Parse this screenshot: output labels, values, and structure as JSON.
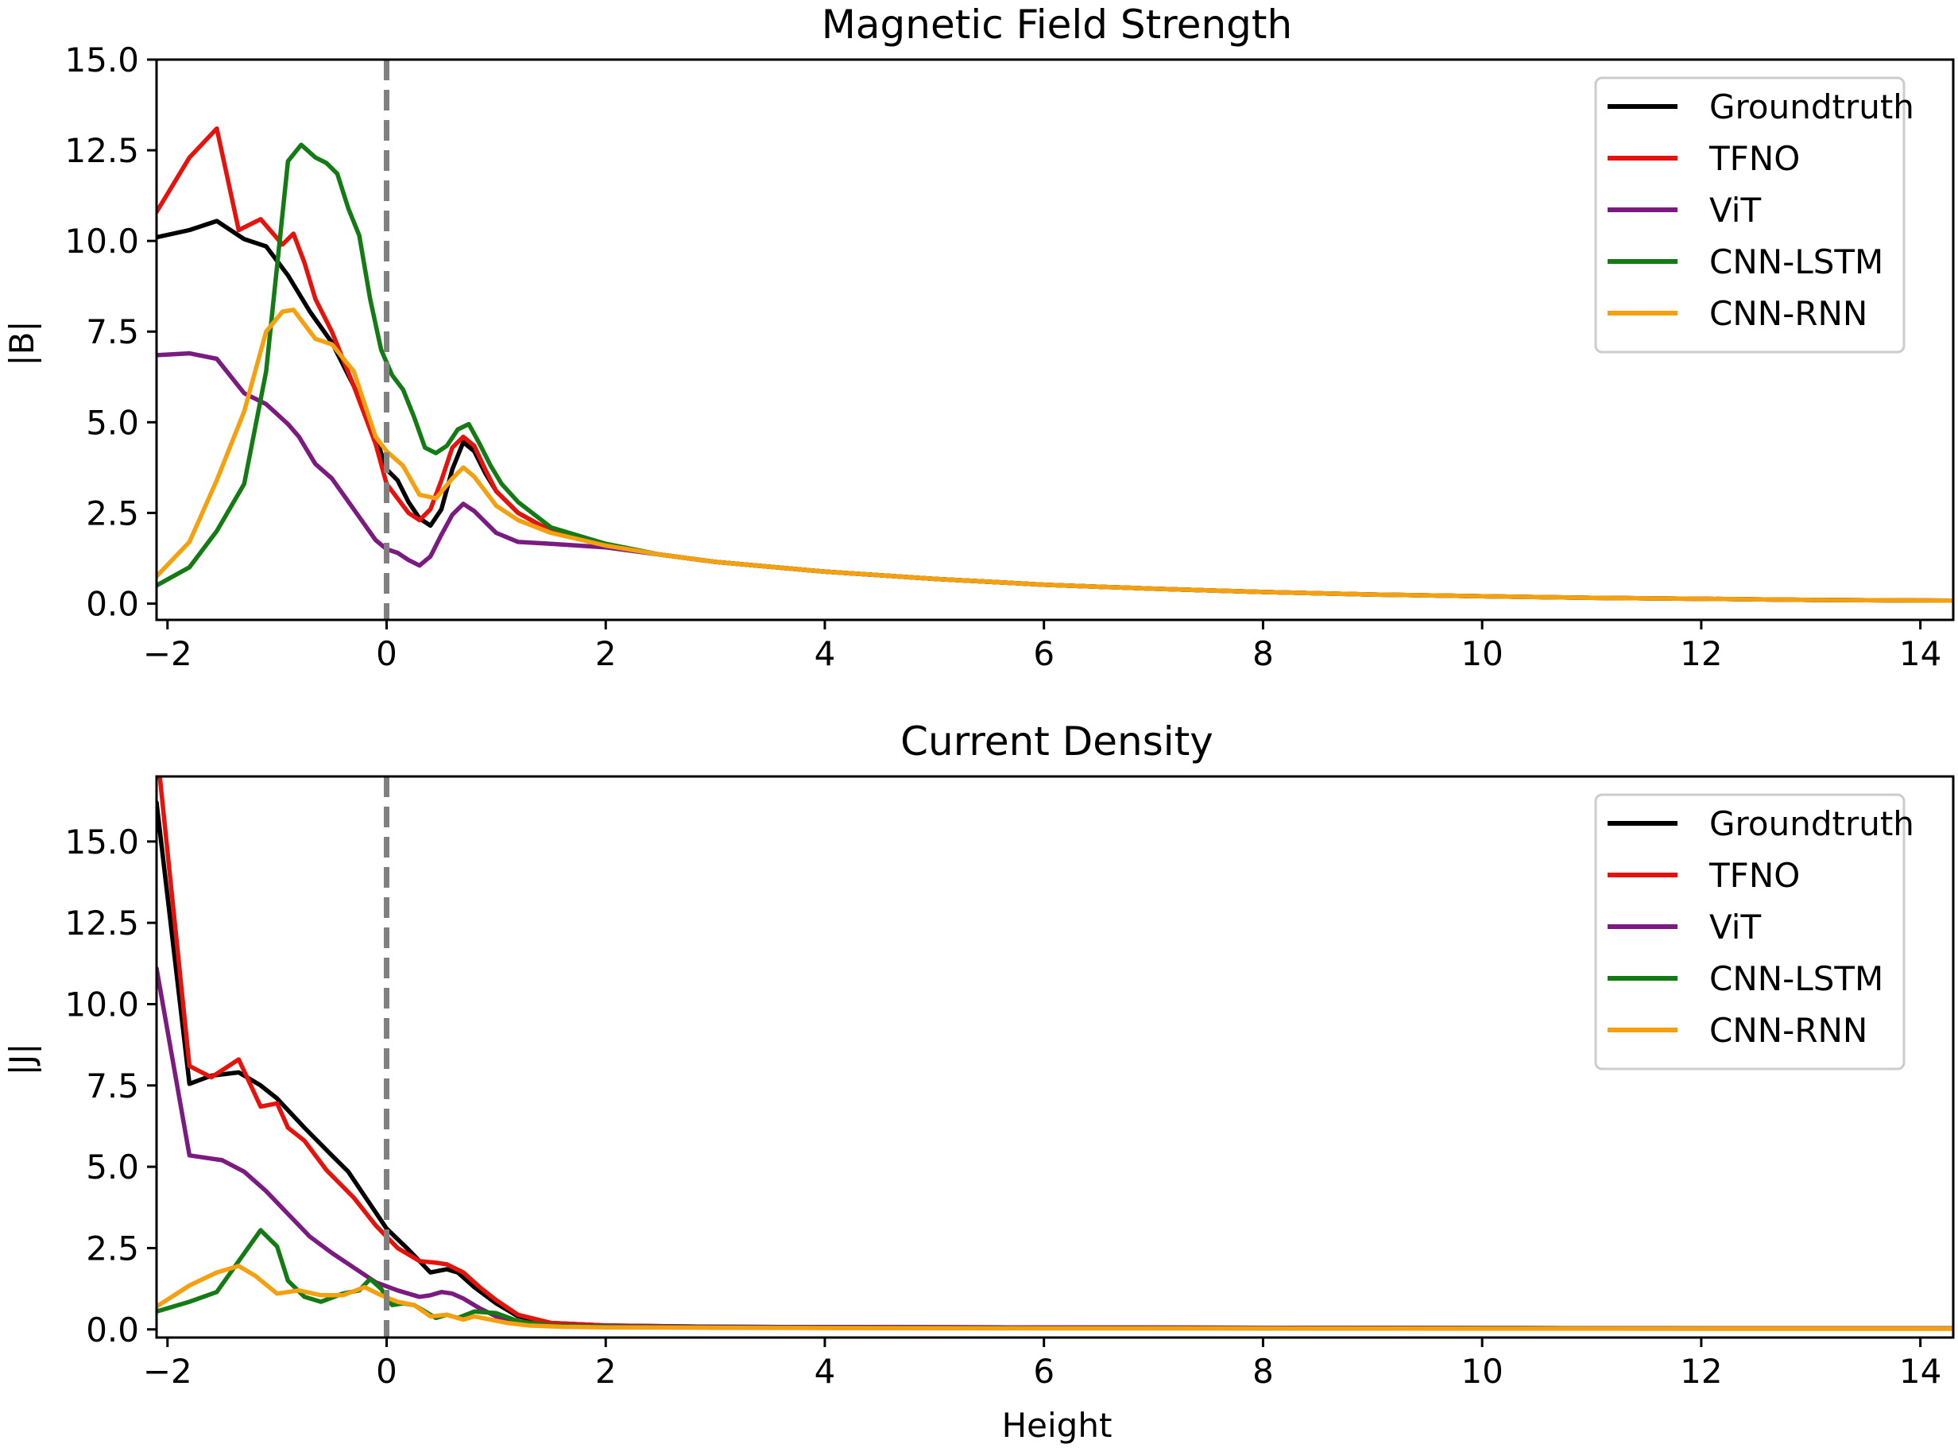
{
  "chart_data": [
    {
      "type": "line",
      "title": "Magnetic Field Strength",
      "xlabel": "",
      "ylabel": "|B|",
      "xlim": [
        -2.1,
        14.3
      ],
      "ylim": [
        -0.45,
        15.0
      ],
      "xticks": [
        -2,
        0,
        2,
        4,
        6,
        8,
        10,
        12,
        14
      ],
      "xtick_labels": [
        "−2",
        "0",
        "2",
        "4",
        "6",
        "8",
        "10",
        "12",
        "14"
      ],
      "yticks": [
        0,
        2.5,
        5,
        7.5,
        10,
        12.5,
        15
      ],
      "ytick_labels": [
        "0.0",
        "2.5",
        "5.0",
        "7.5",
        "10.0",
        "12.5",
        "15.0"
      ],
      "vline": {
        "x": 0,
        "style": "dashed",
        "color": "#808080"
      },
      "legend": {
        "position": "top-right"
      },
      "series": [
        {
          "name": "Groundtruth",
          "color": "#000000",
          "x": [
            -2.1,
            -1.8,
            -1.55,
            -1.3,
            -1.1,
            -0.9,
            -0.7,
            -0.5,
            -0.3,
            -0.1,
            0.0,
            0.1,
            0.2,
            0.3,
            0.4,
            0.5,
            0.6,
            0.7,
            0.8,
            0.9,
            1.0,
            1.2,
            1.5,
            2.0,
            2.5,
            3,
            4,
            5,
            6,
            7,
            8,
            9,
            10,
            11,
            12,
            13,
            14.3
          ],
          "values": [
            10.1,
            10.3,
            10.55,
            10.05,
            9.85,
            9.05,
            8.05,
            7.2,
            6.0,
            4.6,
            3.7,
            3.4,
            2.8,
            2.35,
            2.15,
            2.6,
            3.7,
            4.45,
            4.2,
            3.6,
            3.1,
            2.5,
            2.0,
            1.6,
            1.35,
            1.15,
            0.88,
            0.68,
            0.52,
            0.41,
            0.32,
            0.25,
            0.2,
            0.16,
            0.13,
            0.1,
            0.08
          ]
        },
        {
          "name": "TFNO",
          "color": "#e8120c",
          "x": [
            -2.1,
            -1.8,
            -1.55,
            -1.35,
            -1.15,
            -0.95,
            -0.85,
            -0.75,
            -0.65,
            -0.5,
            -0.3,
            -0.1,
            0.0,
            0.1,
            0.2,
            0.3,
            0.4,
            0.5,
            0.6,
            0.7,
            0.8,
            0.9,
            1.0,
            1.2,
            1.5,
            2.0,
            2.5,
            3,
            4,
            5,
            6,
            7,
            8,
            9,
            10,
            11,
            12,
            13,
            14.3
          ],
          "values": [
            10.8,
            12.3,
            13.1,
            10.3,
            10.6,
            9.9,
            10.2,
            9.4,
            8.4,
            7.5,
            6.0,
            4.4,
            3.3,
            2.9,
            2.5,
            2.3,
            2.6,
            3.4,
            4.3,
            4.6,
            4.35,
            3.7,
            3.1,
            2.5,
            2.0,
            1.6,
            1.35,
            1.15,
            0.88,
            0.68,
            0.52,
            0.41,
            0.32,
            0.25,
            0.2,
            0.16,
            0.13,
            0.1,
            0.08
          ]
        },
        {
          "name": "ViT",
          "color": "#7b1a80",
          "x": [
            -2.1,
            -1.8,
            -1.55,
            -1.3,
            -1.1,
            -0.9,
            -0.8,
            -0.65,
            -0.5,
            -0.3,
            -0.1,
            0.0,
            0.1,
            0.2,
            0.3,
            0.4,
            0.5,
            0.6,
            0.7,
            0.8,
            0.9,
            1.0,
            1.2,
            1.5,
            2.0,
            2.5,
            3,
            4,
            5,
            6,
            7,
            8,
            9,
            10,
            11,
            12,
            13,
            14.3
          ],
          "values": [
            6.85,
            6.9,
            6.75,
            5.8,
            5.5,
            4.95,
            4.6,
            3.85,
            3.45,
            2.6,
            1.75,
            1.5,
            1.4,
            1.2,
            1.05,
            1.3,
            1.9,
            2.45,
            2.75,
            2.55,
            2.25,
            1.95,
            1.7,
            1.65,
            1.55,
            1.35,
            1.15,
            0.88,
            0.68,
            0.52,
            0.41,
            0.32,
            0.25,
            0.2,
            0.16,
            0.13,
            0.1,
            0.08
          ]
        },
        {
          "name": "CNN-LSTM",
          "color": "#147a14",
          "x": [
            -2.1,
            -1.8,
            -1.55,
            -1.3,
            -1.1,
            -0.9,
            -0.78,
            -0.65,
            -0.55,
            -0.45,
            -0.35,
            -0.25,
            -0.15,
            -0.05,
            0.05,
            0.15,
            0.25,
            0.35,
            0.45,
            0.55,
            0.65,
            0.75,
            0.85,
            0.95,
            1.05,
            1.2,
            1.5,
            2.0,
            2.5,
            3,
            4,
            5,
            6,
            7,
            8,
            9,
            10,
            11,
            12,
            13,
            14.3
          ],
          "values": [
            0.5,
            1.0,
            2.0,
            3.3,
            6.4,
            12.2,
            12.65,
            12.3,
            12.15,
            11.85,
            10.9,
            10.15,
            8.4,
            7.0,
            6.3,
            5.9,
            5.15,
            4.3,
            4.15,
            4.35,
            4.8,
            4.95,
            4.4,
            3.8,
            3.3,
            2.8,
            2.1,
            1.65,
            1.35,
            1.15,
            0.88,
            0.68,
            0.52,
            0.41,
            0.32,
            0.25,
            0.2,
            0.16,
            0.13,
            0.1,
            0.08
          ]
        },
        {
          "name": "CNN-RNN",
          "color": "#f5a10f",
          "x": [
            -2.1,
            -1.8,
            -1.55,
            -1.3,
            -1.1,
            -0.95,
            -0.85,
            -0.65,
            -0.5,
            -0.3,
            -0.1,
            0.0,
            0.15,
            0.3,
            0.45,
            0.6,
            0.7,
            0.8,
            0.9,
            1.0,
            1.2,
            1.5,
            2.0,
            2.5,
            3,
            4,
            5,
            6,
            7,
            8,
            9,
            10,
            11,
            12,
            13,
            14.3
          ],
          "values": [
            0.75,
            1.7,
            3.4,
            5.3,
            7.5,
            8.05,
            8.1,
            7.3,
            7.15,
            6.4,
            4.6,
            4.2,
            3.8,
            3.0,
            2.9,
            3.45,
            3.75,
            3.5,
            3.1,
            2.7,
            2.3,
            1.95,
            1.6,
            1.35,
            1.15,
            0.88,
            0.68,
            0.52,
            0.41,
            0.32,
            0.25,
            0.2,
            0.16,
            0.13,
            0.1,
            0.08
          ]
        }
      ]
    },
    {
      "type": "line",
      "title": "Current Density",
      "xlabel": "Height",
      "ylabel": "|J|",
      "xlim": [
        -2.1,
        14.3
      ],
      "ylim": [
        -0.25,
        17.0
      ],
      "xticks": [
        -2,
        0,
        2,
        4,
        6,
        8,
        10,
        12,
        14
      ],
      "xtick_labels": [
        "−2",
        "0",
        "2",
        "4",
        "6",
        "8",
        "10",
        "12",
        "14"
      ],
      "yticks": [
        0,
        2.5,
        5,
        7.5,
        10,
        12.5,
        15
      ],
      "ytick_labels": [
        "0.0",
        "2.5",
        "5.0",
        "7.5",
        "10.0",
        "12.5",
        "15.0"
      ],
      "vline": {
        "x": 0,
        "style": "dashed",
        "color": "#808080"
      },
      "legend": {
        "position": "top-right"
      },
      "series": [
        {
          "name": "Groundtruth",
          "color": "#000000",
          "x": [
            -2.1,
            -1.8,
            -1.6,
            -1.35,
            -1.15,
            -1.0,
            -0.75,
            -0.5,
            -0.35,
            -0.2,
            0.0,
            0.2,
            0.4,
            0.55,
            0.65,
            0.8,
            1.0,
            1.2,
            1.5,
            2.0,
            3,
            4,
            6,
            8,
            10,
            12,
            14.3
          ],
          "values": [
            16.2,
            7.55,
            7.8,
            7.9,
            7.5,
            7.1,
            6.2,
            5.35,
            4.85,
            4.1,
            3.1,
            2.45,
            1.75,
            1.85,
            1.75,
            1.3,
            0.8,
            0.4,
            0.2,
            0.12,
            0.08,
            0.07,
            0.06,
            0.05,
            0.04,
            0.03,
            0.03
          ]
        },
        {
          "name": "TFNO",
          "color": "#e8120c",
          "x": [
            -2.07,
            -1.8,
            -1.6,
            -1.35,
            -1.15,
            -1.0,
            -0.9,
            -0.75,
            -0.55,
            -0.3,
            -0.1,
            0.1,
            0.3,
            0.45,
            0.55,
            0.7,
            0.85,
            1.0,
            1.2,
            1.5,
            2.0,
            3,
            4,
            6,
            8,
            10,
            12,
            14.3
          ],
          "values": [
            17.0,
            8.1,
            7.75,
            8.3,
            6.85,
            6.95,
            6.2,
            5.8,
            4.9,
            4.05,
            3.2,
            2.5,
            2.1,
            2.05,
            2.0,
            1.75,
            1.3,
            0.9,
            0.45,
            0.2,
            0.12,
            0.08,
            0.07,
            0.06,
            0.05,
            0.04,
            0.03,
            0.03
          ]
        },
        {
          "name": "ViT",
          "color": "#7b1a80",
          "x": [
            -2.1,
            -1.8,
            -1.5,
            -1.3,
            -1.1,
            -0.9,
            -0.7,
            -0.5,
            -0.3,
            -0.1,
            0.1,
            0.3,
            0.4,
            0.5,
            0.6,
            0.7,
            0.85,
            1.0,
            1.2,
            1.5,
            2.0,
            3,
            4,
            6,
            8,
            10,
            12,
            14.3
          ],
          "values": [
            11.1,
            5.35,
            5.2,
            4.85,
            4.25,
            3.55,
            2.85,
            2.35,
            1.9,
            1.45,
            1.2,
            1.0,
            1.05,
            1.15,
            1.1,
            0.95,
            0.65,
            0.4,
            0.2,
            0.12,
            0.1,
            0.08,
            0.07,
            0.06,
            0.05,
            0.04,
            0.03,
            0.03
          ]
        },
        {
          "name": "CNN-LSTM",
          "color": "#147a14",
          "x": [
            -2.1,
            -1.8,
            -1.55,
            -1.35,
            -1.15,
            -1.0,
            -0.9,
            -0.75,
            -0.6,
            -0.4,
            -0.25,
            -0.15,
            -0.05,
            0.05,
            0.15,
            0.25,
            0.35,
            0.45,
            0.55,
            0.65,
            0.8,
            1.0,
            1.2,
            1.5,
            2.0,
            3,
            4,
            6,
            8,
            10,
            12,
            14.3
          ],
          "values": [
            0.55,
            0.85,
            1.15,
            2.1,
            3.05,
            2.55,
            1.5,
            1.0,
            0.85,
            1.1,
            1.2,
            1.55,
            1.25,
            0.75,
            0.8,
            0.75,
            0.55,
            0.35,
            0.45,
            0.35,
            0.55,
            0.5,
            0.25,
            0.12,
            0.08,
            0.06,
            0.05,
            0.04,
            0.03,
            0.03,
            0.02,
            0.02
          ]
        },
        {
          "name": "CNN-RNN",
          "color": "#f5a10f",
          "x": [
            -2.1,
            -1.8,
            -1.55,
            -1.35,
            -1.2,
            -1.0,
            -0.8,
            -0.6,
            -0.4,
            -0.2,
            -0.05,
            0.1,
            0.25,
            0.4,
            0.55,
            0.7,
            0.8,
            0.95,
            1.1,
            1.3,
            1.6,
            2.0,
            3,
            4,
            6,
            8,
            10,
            12,
            14.3
          ],
          "values": [
            0.7,
            1.35,
            1.75,
            1.95,
            1.65,
            1.1,
            1.2,
            1.05,
            1.05,
            1.3,
            1.05,
            0.85,
            0.75,
            0.4,
            0.45,
            0.3,
            0.4,
            0.3,
            0.2,
            0.12,
            0.08,
            0.06,
            0.05,
            0.04,
            0.03,
            0.03,
            0.02,
            0.02,
            0.02
          ]
        }
      ]
    }
  ]
}
